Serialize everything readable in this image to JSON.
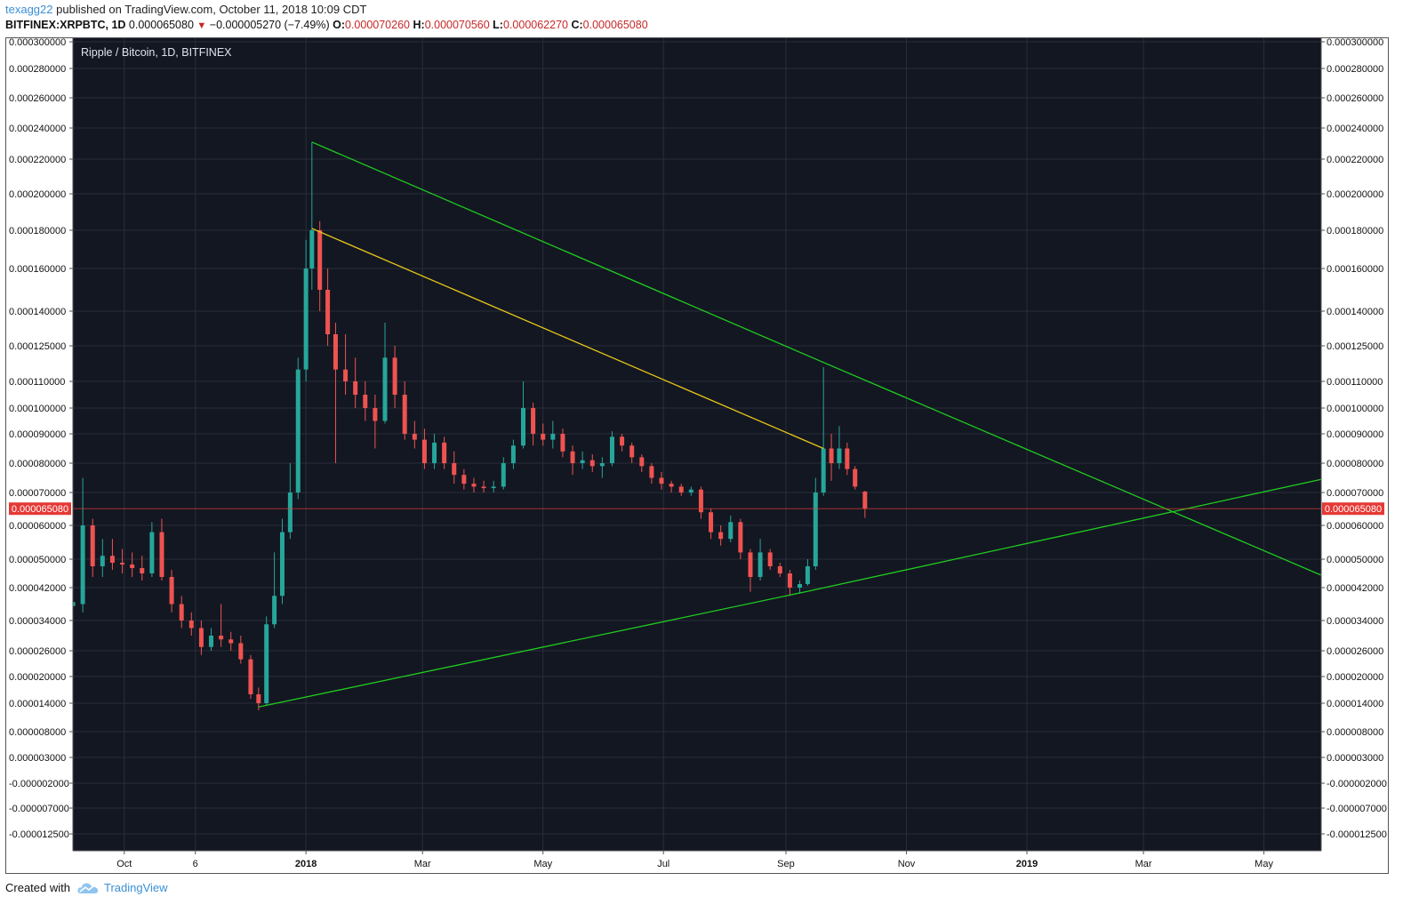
{
  "header": {
    "username": "texagg22",
    "published_text": "published on TradingView.com, October 11, 2018 10:09 CDT"
  },
  "ticker": {
    "symbol": "BITFINEX:XRPBTC, 1D",
    "last": "0.000065080",
    "down_arrow": "▼",
    "change": "−0.000005270 (−7.49%)",
    "o_label": "O:",
    "o_value": "0.000070260",
    "h_label": "H:",
    "h_value": "0.000070560",
    "l_label": "L:",
    "l_value": "0.000062270",
    "c_label": "C:",
    "c_value": "0.000065080"
  },
  "footer": {
    "created_with": "Created with",
    "brand": "TradingView",
    "brand_icon": "tradingview-cloud-icon"
  },
  "colors": {
    "background": "#131722",
    "grid": "#2a2e39",
    "up": "#26a69a",
    "down": "#ef5350",
    "trendline_green": "#1fcc1f",
    "trendline_yellow": "#e6c619",
    "price_line": "#e53935",
    "axis_text": "#111111"
  },
  "chart_data": {
    "type": "candlestick",
    "title": "Ripple / Bitcoin, 1D, BITFINEX",
    "price_scale": "log",
    "last_price_label": "0.000065080",
    "y_ticks": [
      "0.000300000",
      "0.000280000",
      "0.000260000",
      "0.000240000",
      "0.000220000",
      "0.000200000",
      "0.000180000",
      "0.000160000",
      "0.000140000",
      "0.000125000",
      "0.000110000",
      "0.000100000",
      "0.000090000",
      "0.000080000",
      "0.000070000",
      "0.000060000",
      "0.000050000",
      "0.000042000",
      "0.000034000",
      "0.000026000",
      "0.000020000",
      "0.000014000",
      "0.000008000",
      "0.000003000",
      "-0.000002000",
      "-0.000007000",
      "-0.000012500"
    ],
    "x_ticks": [
      "Oct",
      "6",
      "2018",
      "Mar",
      "May",
      "Jul",
      "Sep",
      "Nov",
      "2019",
      "Mar",
      "May"
    ],
    "x_ticks_bold": [
      "2018",
      "2019"
    ],
    "x_range": [
      "2017-09-05",
      "2019-05-30"
    ],
    "series": [
      {
        "candles": [
          {
            "x": "2017-09-05",
            "o": 3.75e-05,
            "h": 4.1e-05,
            "l": 3.5e-05,
            "c": 3.85e-05
          },
          {
            "x": "2017-09-10",
            "o": 3.8e-05,
            "h": 7.5e-05,
            "l": 3.6e-05,
            "c": 6e-05
          },
          {
            "x": "2017-09-15",
            "o": 6e-05,
            "h": 6.2e-05,
            "l": 4.5e-05,
            "c": 4.8e-05
          },
          {
            "x": "2017-09-20",
            "o": 4.8e-05,
            "h": 5.6e-05,
            "l": 4.5e-05,
            "c": 5.1e-05
          },
          {
            "x": "2017-09-25",
            "o": 5.1e-05,
            "h": 5.6e-05,
            "l": 4.7e-05,
            "c": 4.9e-05
          },
          {
            "x": "2017-09-30",
            "o": 4.9e-05,
            "h": 5.3e-05,
            "l": 4.6e-05,
            "c": 4.85e-05
          },
          {
            "x": "2017-10-05",
            "o": 4.85e-05,
            "h": 5.2e-05,
            "l": 4.5e-05,
            "c": 4.75e-05
          },
          {
            "x": "2017-10-10",
            "o": 4.75e-05,
            "h": 5.1e-05,
            "l": 4.4e-05,
            "c": 4.6e-05
          },
          {
            "x": "2017-10-15",
            "o": 4.6e-05,
            "h": 6.1e-05,
            "l": 4.5e-05,
            "c": 5.8e-05
          },
          {
            "x": "2017-10-20",
            "o": 5.8e-05,
            "h": 6.2e-05,
            "l": 4.4e-05,
            "c": 4.5e-05
          },
          {
            "x": "2017-10-25",
            "o": 4.5e-05,
            "h": 4.7e-05,
            "l": 3.6e-05,
            "c": 3.8e-05
          },
          {
            "x": "2017-10-30",
            "o": 3.8e-05,
            "h": 4e-05,
            "l": 3.2e-05,
            "c": 3.4e-05
          },
          {
            "x": "2017-11-04",
            "o": 3.4e-05,
            "h": 3.6e-05,
            "l": 3e-05,
            "c": 3.2e-05
          },
          {
            "x": "2017-11-09",
            "o": 3.2e-05,
            "h": 3.4e-05,
            "l": 2.5e-05,
            "c": 2.7e-05
          },
          {
            "x": "2017-11-14",
            "o": 2.7e-05,
            "h": 3.2e-05,
            "l": 2.6e-05,
            "c": 3e-05
          },
          {
            "x": "2017-11-19",
            "o": 3e-05,
            "h": 3.8e-05,
            "l": 2.7e-05,
            "c": 2.9e-05
          },
          {
            "x": "2017-11-24",
            "o": 2.9e-05,
            "h": 3.1e-05,
            "l": 2.6e-05,
            "c": 2.8e-05
          },
          {
            "x": "2017-11-29",
            "o": 2.8e-05,
            "h": 3e-05,
            "l": 2.3e-05,
            "c": 2.4e-05
          },
          {
            "x": "2017-12-04",
            "o": 2.4e-05,
            "h": 2.5e-05,
            "l": 1.5e-05,
            "c": 1.6e-05
          },
          {
            "x": "2017-12-08",
            "o": 1.6e-05,
            "h": 1.75e-05,
            "l": 1.25e-05,
            "c": 1.4e-05
          },
          {
            "x": "2017-12-12",
            "o": 1.4e-05,
            "h": 3.5e-05,
            "l": 1.35e-05,
            "c": 3.3e-05
          },
          {
            "x": "2017-12-16",
            "o": 3.3e-05,
            "h": 5.2e-05,
            "l": 3.2e-05,
            "c": 4e-05
          },
          {
            "x": "2017-12-20",
            "o": 4e-05,
            "h": 6.2e-05,
            "l": 3.8e-05,
            "c": 5.8e-05
          },
          {
            "x": "2017-12-24",
            "o": 5.8e-05,
            "h": 8e-05,
            "l": 5.6e-05,
            "c": 7e-05
          },
          {
            "x": "2017-12-28",
            "o": 7e-05,
            "h": 0.00012,
            "l": 6.8e-05,
            "c": 0.000115
          },
          {
            "x": "2018-01-01",
            "o": 0.000115,
            "h": 0.000175,
            "l": 0.00011,
            "c": 0.00016
          },
          {
            "x": "2018-01-04",
            "o": 0.00016,
            "h": 0.000231,
            "l": 0.00015,
            "c": 0.00018
          },
          {
            "x": "2018-01-08",
            "o": 0.00018,
            "h": 0.000185,
            "l": 0.00014,
            "c": 0.00015
          },
          {
            "x": "2018-01-12",
            "o": 0.00015,
            "h": 0.00016,
            "l": 0.000125,
            "c": 0.00013
          },
          {
            "x": "2018-01-16",
            "o": 0.00013,
            "h": 0.000135,
            "l": 8e-05,
            "c": 0.000115
          },
          {
            "x": "2018-01-21",
            "o": 0.000115,
            "h": 0.00013,
            "l": 0.000105,
            "c": 0.00011
          },
          {
            "x": "2018-01-26",
            "o": 0.00011,
            "h": 0.00012,
            "l": 0.0001,
            "c": 0.000105
          },
          {
            "x": "2018-01-31",
            "o": 0.000105,
            "h": 0.00011,
            "l": 9.5e-05,
            "c": 0.0001
          },
          {
            "x": "2018-02-05",
            "o": 0.0001,
            "h": 0.000105,
            "l": 8.5e-05,
            "c": 9.5e-05
          },
          {
            "x": "2018-02-10",
            "o": 9.5e-05,
            "h": 0.000135,
            "l": 9.4e-05,
            "c": 0.00012
          },
          {
            "x": "2018-02-15",
            "o": 0.00012,
            "h": 0.000125,
            "l": 0.0001,
            "c": 0.000105
          },
          {
            "x": "2018-02-20",
            "o": 0.000105,
            "h": 0.00011,
            "l": 8.8e-05,
            "c": 9e-05
          },
          {
            "x": "2018-02-25",
            "o": 9e-05,
            "h": 9.5e-05,
            "l": 8.5e-05,
            "c": 8.8e-05
          },
          {
            "x": "2018-03-02",
            "o": 8.8e-05,
            "h": 9.2e-05,
            "l": 7.8e-05,
            "c": 8e-05
          },
          {
            "x": "2018-03-07",
            "o": 8e-05,
            "h": 9e-05,
            "l": 7.8e-05,
            "c": 8.7e-05
          },
          {
            "x": "2018-03-12",
            "o": 8.7e-05,
            "h": 8.9e-05,
            "l": 7.8e-05,
            "c": 8e-05
          },
          {
            "x": "2018-03-17",
            "o": 8e-05,
            "h": 8.4e-05,
            "l": 7.3e-05,
            "c": 7.6e-05
          },
          {
            "x": "2018-03-22",
            "o": 7.6e-05,
            "h": 7.8e-05,
            "l": 7.1e-05,
            "c": 7.3e-05
          },
          {
            "x": "2018-03-27",
            "o": 7.3e-05,
            "h": 7.5e-05,
            "l": 7e-05,
            "c": 7.2e-05
          },
          {
            "x": "2018-04-01",
            "o": 7.2e-05,
            "h": 7.4e-05,
            "l": 7e-05,
            "c": 7.15e-05
          },
          {
            "x": "2018-04-06",
            "o": 7.15e-05,
            "h": 7.4e-05,
            "l": 7e-05,
            "c": 7.2e-05
          },
          {
            "x": "2018-04-11",
            "o": 7.2e-05,
            "h": 8.2e-05,
            "l": 7.1e-05,
            "c": 8e-05
          },
          {
            "x": "2018-04-16",
            "o": 8e-05,
            "h": 8.8e-05,
            "l": 7.8e-05,
            "c": 8.6e-05
          },
          {
            "x": "2018-04-21",
            "o": 8.6e-05,
            "h": 0.00011,
            "l": 8.5e-05,
            "c": 0.0001
          },
          {
            "x": "2018-04-26",
            "o": 0.0001,
            "h": 0.000102,
            "l": 8.6e-05,
            "c": 9e-05
          },
          {
            "x": "2018-05-01",
            "o": 9e-05,
            "h": 9.4e-05,
            "l": 8.6e-05,
            "c": 8.8e-05
          },
          {
            "x": "2018-05-06",
            "o": 8.8e-05,
            "h": 9.5e-05,
            "l": 8.5e-05,
            "c": 9e-05
          },
          {
            "x": "2018-05-11",
            "o": 9e-05,
            "h": 9.2e-05,
            "l": 8.2e-05,
            "c": 8.4e-05
          },
          {
            "x": "2018-05-16",
            "o": 8.4e-05,
            "h": 8.6e-05,
            "l": 7.6e-05,
            "c": 8e-05
          },
          {
            "x": "2018-05-21",
            "o": 8e-05,
            "h": 8.4e-05,
            "l": 7.8e-05,
            "c": 8.1e-05
          },
          {
            "x": "2018-05-26",
            "o": 8.1e-05,
            "h": 8.3e-05,
            "l": 7.7e-05,
            "c": 7.9e-05
          },
          {
            "x": "2018-05-31",
            "o": 7.9e-05,
            "h": 8.2e-05,
            "l": 7.5e-05,
            "c": 8e-05
          },
          {
            "x": "2018-06-05",
            "o": 8e-05,
            "h": 9.1e-05,
            "l": 7.9e-05,
            "c": 8.9e-05
          },
          {
            "x": "2018-06-10",
            "o": 8.9e-05,
            "h": 9e-05,
            "l": 8.4e-05,
            "c": 8.6e-05
          },
          {
            "x": "2018-06-15",
            "o": 8.6e-05,
            "h": 8.7e-05,
            "l": 8e-05,
            "c": 8.2e-05
          },
          {
            "x": "2018-06-20",
            "o": 8.2e-05,
            "h": 8.3e-05,
            "l": 7.7e-05,
            "c": 7.9e-05
          },
          {
            "x": "2018-06-25",
            "o": 7.9e-05,
            "h": 8e-05,
            "l": 7.3e-05,
            "c": 7.5e-05
          },
          {
            "x": "2018-06-30",
            "o": 7.5e-05,
            "h": 7.7e-05,
            "l": 7.1e-05,
            "c": 7.3e-05
          },
          {
            "x": "2018-07-05",
            "o": 7.3e-05,
            "h": 7.4e-05,
            "l": 7e-05,
            "c": 7.2e-05
          },
          {
            "x": "2018-07-10",
            "o": 7.2e-05,
            "h": 7.3e-05,
            "l": 6.9e-05,
            "c": 7e-05
          },
          {
            "x": "2018-07-15",
            "o": 7e-05,
            "h": 7.2e-05,
            "l": 6.9e-05,
            "c": 7.1e-05
          },
          {
            "x": "2018-07-20",
            "o": 7.1e-05,
            "h": 7.2e-05,
            "l": 6.2e-05,
            "c": 6.4e-05
          },
          {
            "x": "2018-07-25",
            "o": 6.4e-05,
            "h": 6.5e-05,
            "l": 5.6e-05,
            "c": 5.8e-05
          },
          {
            "x": "2018-07-30",
            "o": 5.8e-05,
            "h": 6e-05,
            "l": 5.4e-05,
            "c": 5.6e-05
          },
          {
            "x": "2018-08-04",
            "o": 5.6e-05,
            "h": 6.3e-05,
            "l": 5.5e-05,
            "c": 6.1e-05
          },
          {
            "x": "2018-08-09",
            "o": 6.1e-05,
            "h": 6.2e-05,
            "l": 5e-05,
            "c": 5.2e-05
          },
          {
            "x": "2018-08-14",
            "o": 5.2e-05,
            "h": 5.3e-05,
            "l": 4.1e-05,
            "c": 4.5e-05
          },
          {
            "x": "2018-08-19",
            "o": 4.5e-05,
            "h": 5.6e-05,
            "l": 4.4e-05,
            "c": 5.2e-05
          },
          {
            "x": "2018-08-24",
            "o": 5.2e-05,
            "h": 5.3e-05,
            "l": 4.7e-05,
            "c": 4.8e-05
          },
          {
            "x": "2018-08-29",
            "o": 4.8e-05,
            "h": 4.9e-05,
            "l": 4.5e-05,
            "c": 4.6e-05
          },
          {
            "x": "2018-09-03",
            "o": 4.6e-05,
            "h": 4.7e-05,
            "l": 4e-05,
            "c": 4.2e-05
          },
          {
            "x": "2018-09-08",
            "o": 4.2e-05,
            "h": 4.4e-05,
            "l": 4.05e-05,
            "c": 4.3e-05
          },
          {
            "x": "2018-09-12",
            "o": 4.3e-05,
            "h": 5e-05,
            "l": 4.25e-05,
            "c": 4.8e-05
          },
          {
            "x": "2018-09-16",
            "o": 4.8e-05,
            "h": 7.5e-05,
            "l": 4.7e-05,
            "c": 7e-05
          },
          {
            "x": "2018-09-20",
            "o": 7e-05,
            "h": 0.000116,
            "l": 6.9e-05,
            "c": 8.5e-05
          },
          {
            "x": "2018-09-24",
            "o": 8.5e-05,
            "h": 9e-05,
            "l": 7.4e-05,
            "c": 8e-05
          },
          {
            "x": "2018-09-28",
            "o": 8e-05,
            "h": 9.3e-05,
            "l": 7.8e-05,
            "c": 8.5e-05
          },
          {
            "x": "2018-10-02",
            "o": 8.5e-05,
            "h": 8.7e-05,
            "l": 7.6e-05,
            "c": 7.8e-05
          },
          {
            "x": "2018-10-06",
            "o": 7.8e-05,
            "h": 7.9e-05,
            "l": 7.1e-05,
            "c": 7.2e-05
          },
          {
            "x": "2018-10-11",
            "o": 7.03e-05,
            "h": 7.06e-05,
            "l": 6.23e-05,
            "c": 6.51e-05
          }
        ]
      }
    ],
    "trendlines": [
      {
        "name": "upper",
        "color": "green",
        "points": [
          [
            "2018-01-04",
            0.000231
          ],
          [
            "2018-09-20",
            0.000118
          ],
          [
            "2019-05-30",
            4.55e-05
          ]
        ]
      },
      {
        "name": "lower",
        "color": "green",
        "points": [
          [
            "2017-12-08",
            1.32e-05
          ],
          [
            "2018-09-11",
            4.1e-05
          ],
          [
            "2019-05-30",
            7.45e-05
          ]
        ]
      },
      {
        "name": "inner",
        "color": "yellow",
        "points": [
          [
            "2018-01-04",
            0.000181
          ],
          [
            "2018-09-20",
            8.5e-05
          ]
        ]
      }
    ],
    "grid": true
  }
}
